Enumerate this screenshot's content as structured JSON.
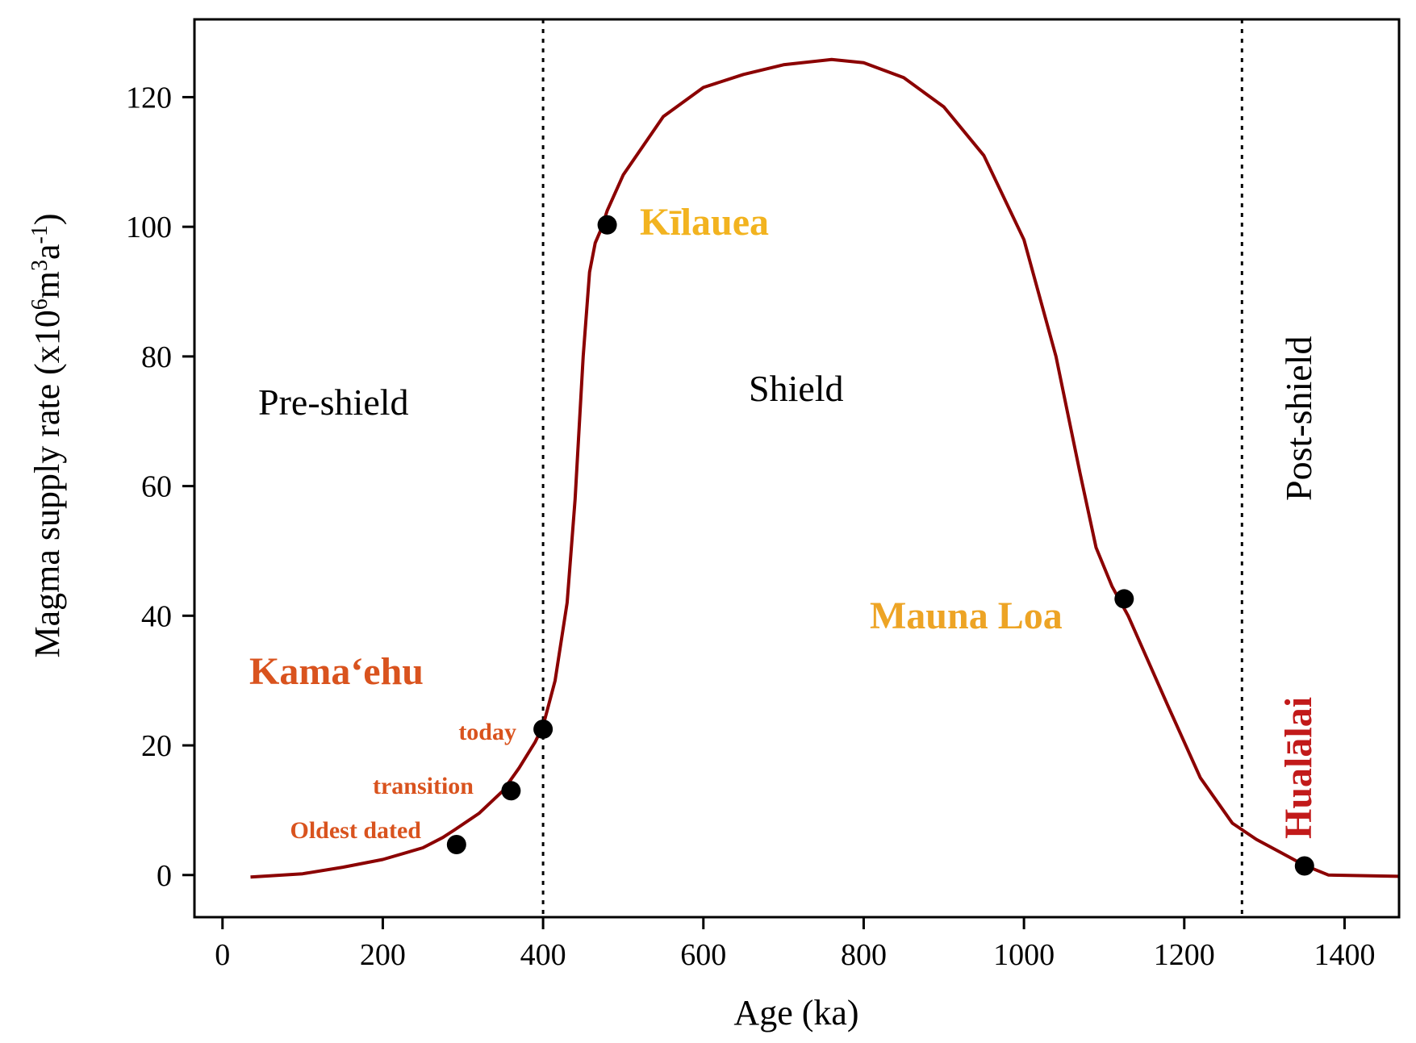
{
  "chart_data": {
    "type": "line",
    "xlabel": "Age (ka)",
    "ylabel_main": "Magma supply rate (x10",
    "ylabel_sup1": "6",
    "ylabel_mid": "m",
    "ylabel_sup2": "3",
    "ylabel_mid2": "a",
    "ylabel_sup3": "-1",
    "ylabel_end": ")",
    "xlim": [
      -35,
      1468
    ],
    "ylim": [
      -6.5,
      132
    ],
    "xticks": [
      0,
      200,
      400,
      600,
      800,
      1000,
      1200,
      1400
    ],
    "yticks": [
      0,
      20,
      40,
      60,
      80,
      100,
      120
    ],
    "line_color": "#8b0000",
    "curve": {
      "x": [
        35,
        100,
        150,
        200,
        250,
        275,
        290,
        320,
        350,
        370,
        390,
        400,
        415,
        430,
        440,
        450,
        458,
        465,
        472,
        480,
        500,
        550,
        600,
        650,
        700,
        760,
        800,
        850,
        900,
        950,
        1000,
        1040,
        1070,
        1090,
        1110,
        1130,
        1180,
        1220,
        1260,
        1290,
        1320,
        1350,
        1380,
        1468
      ],
      "y": [
        -0.3,
        0.2,
        1.2,
        2.4,
        4.2,
        5.8,
        7.0,
        9.5,
        13.0,
        16.5,
        20.5,
        23.0,
        30.0,
        42.0,
        58.0,
        80.0,
        93.0,
        97.5,
        99.5,
        102.5,
        108.0,
        117.0,
        121.5,
        123.5,
        125.0,
        125.8,
        125.3,
        123.0,
        118.5,
        111.0,
        98.0,
        80.0,
        62.0,
        50.5,
        44.5,
        40.0,
        26.0,
        15.0,
        8.0,
        5.5,
        3.5,
        1.5,
        0.0,
        -0.2
      ]
    },
    "points": [
      {
        "x": 292,
        "y": 4.7
      },
      {
        "x": 360,
        "y": 13.0
      },
      {
        "x": 400,
        "y": 22.5
      },
      {
        "x": 480,
        "y": 100.3
      },
      {
        "x": 1125,
        "y": 42.6
      },
      {
        "x": 1350,
        "y": 1.4
      }
    ],
    "vlines": [
      400,
      1272
    ],
    "phases": {
      "pre_shield": "Pre-shield",
      "shield": "Shield",
      "post_shield": "Post-shield"
    },
    "volcanoes": {
      "kamaehu": {
        "label": "Kamaʻehu",
        "color": "#d9531e"
      },
      "kilauea": {
        "label": "Kīlauea",
        "color": "#f2b31f"
      },
      "mauna_loa": {
        "label": "Mauna Loa",
        "color": "#eda425"
      },
      "hualalai": {
        "label": "Hualālai",
        "color": "#c21a1a"
      }
    },
    "annotations": {
      "today": "today",
      "transition": "transition",
      "oldest": "Oldest dated",
      "color": "#d9531e"
    }
  }
}
